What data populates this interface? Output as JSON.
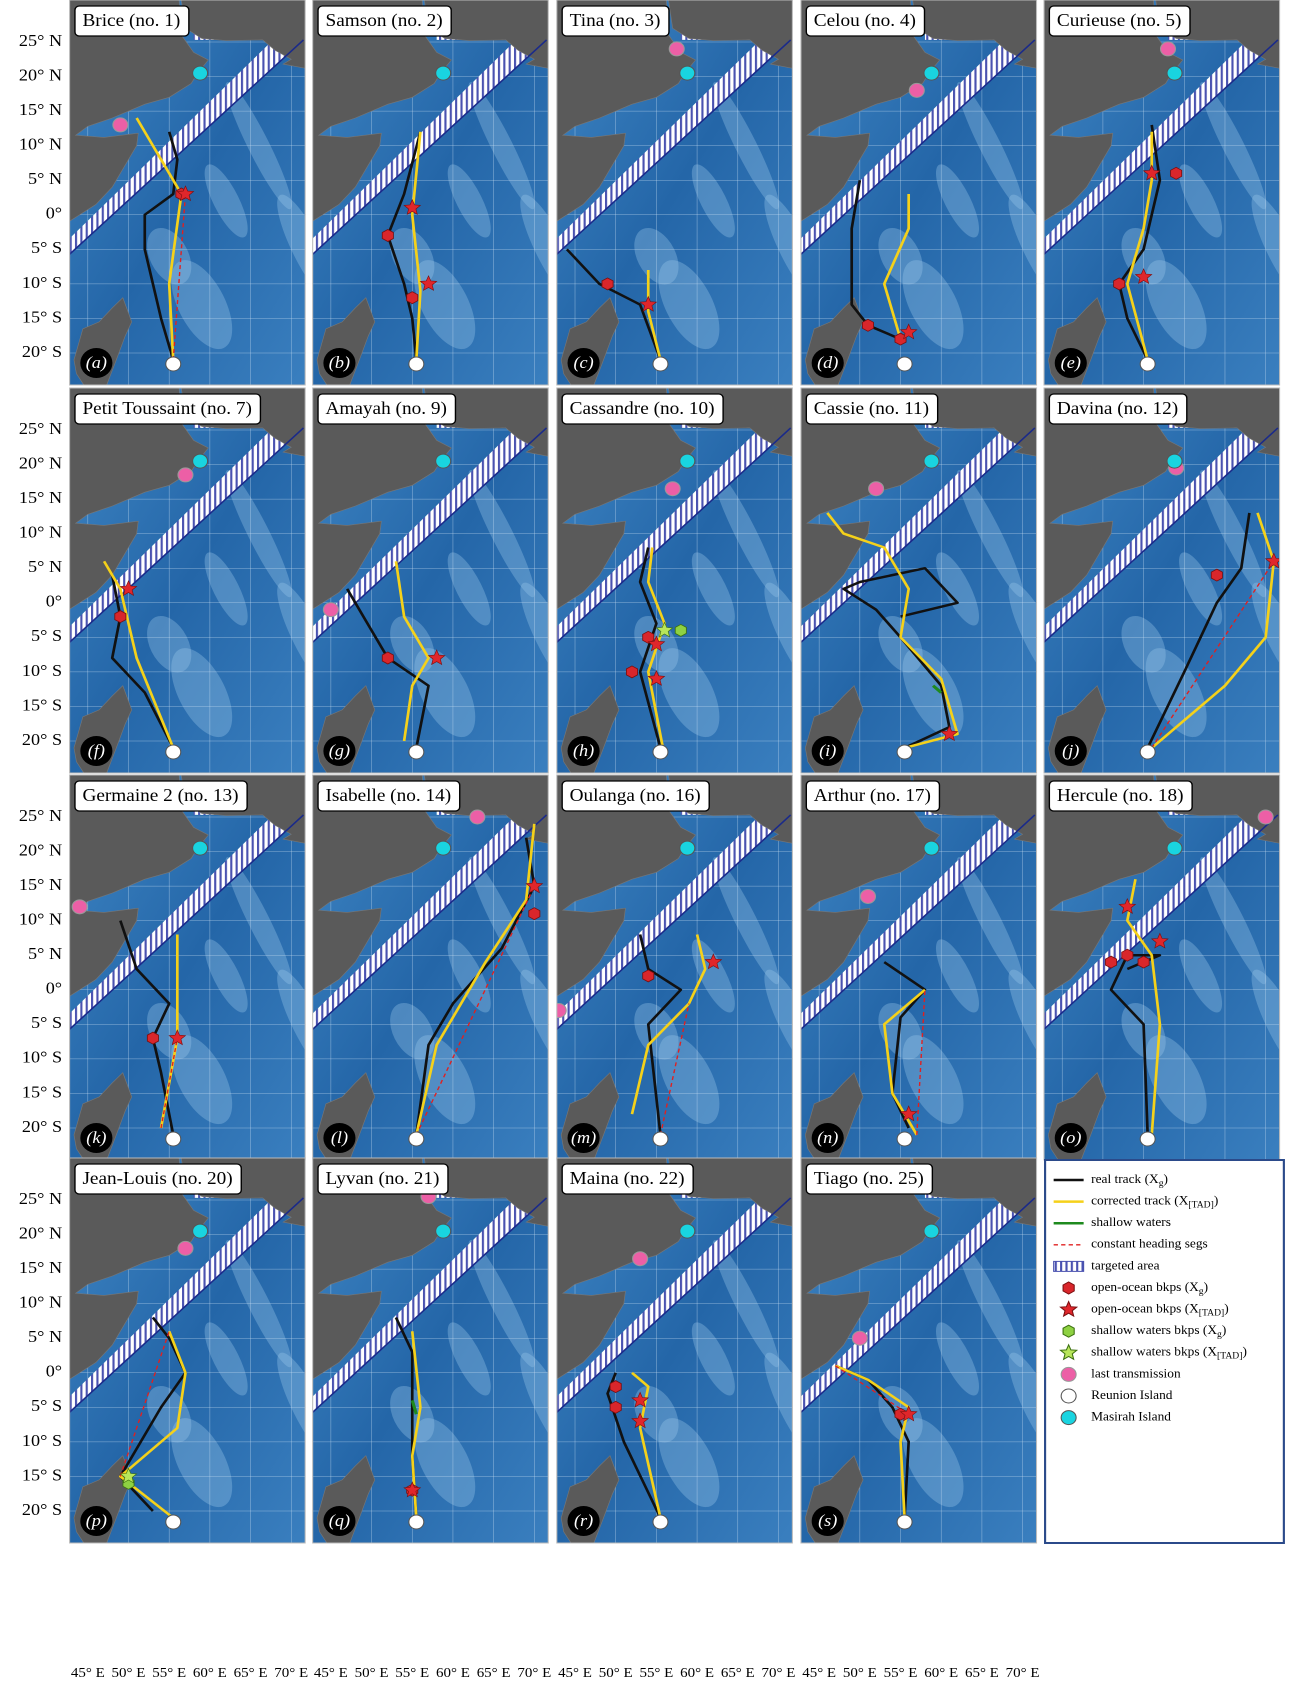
{
  "panels": [
    {
      "title": "Brice (no. 1)",
      "letter": "(a)"
    },
    {
      "title": "Samson (no. 2)",
      "letter": "(b)"
    },
    {
      "title": "Tina (no. 3)",
      "letter": "(c)"
    },
    {
      "title": "Celou (no. 4)",
      "letter": "(d)"
    },
    {
      "title": "Curieuse (no. 5)",
      "letter": "(e)"
    },
    {
      "title": "Petit Toussaint (no. 7)",
      "letter": "(f)"
    },
    {
      "title": "Amayah (no. 9)",
      "letter": "(g)"
    },
    {
      "title": "Cassandre (no. 10)",
      "letter": "(h)"
    },
    {
      "title": "Cassie (no. 11)",
      "letter": "(i)"
    },
    {
      "title": "Davina (no. 12)",
      "letter": "(j)"
    },
    {
      "title": "Germaine 2 (no. 13)",
      "letter": "(k)"
    },
    {
      "title": "Isabelle (no. 14)",
      "letter": "(l)"
    },
    {
      "title": "Oulanga (no. 16)",
      "letter": "(m)"
    },
    {
      "title": "Arthur (no. 17)",
      "letter": "(n)"
    },
    {
      "title": "Hercule (no. 18)",
      "letter": "(o)"
    },
    {
      "title": "Jean-Louis (no. 20)",
      "letter": "(p)"
    },
    {
      "title": "Lyvan (no.  21)",
      "letter": "(q)"
    },
    {
      "title": "Maina (no. 22)",
      "letter": "(r)"
    },
    {
      "title": "Tiago (no. 25)",
      "letter": "(s)"
    }
  ],
  "lat_labels": [
    "25° N",
    "20° N",
    "15° N",
    "10° N",
    "5° N",
    "0°",
    "5° S",
    "10° S",
    "15° S",
    "20° S"
  ],
  "lon_labels": [
    "45° E",
    "50° E",
    "55° E",
    "60° E",
    "65° E",
    "70° E"
  ],
  "legend": [
    {
      "label": "real track (X",
      "sub": "g",
      "end": ")"
    },
    {
      "label": "corrected track (X",
      "sub": "[TAD]",
      "end": ")"
    },
    {
      "label": "shallow waters"
    },
    {
      "label": "constant heading segs"
    },
    {
      "label": "targeted area"
    },
    {
      "label": "open-ocean bkps (X",
      "sub": "g",
      "end": ")"
    },
    {
      "label": "open-ocean bkps (X",
      "sub": "[TAD]",
      "end": ")"
    },
    {
      "label": "shallow waters bkps (X",
      "sub": "g",
      "end": ")"
    },
    {
      "label": "shallow waters bkps (X",
      "sub": "[TAD]",
      "end": ")"
    },
    {
      "label": "last transmission"
    },
    {
      "label": "Reunion Island"
    },
    {
      "label": "Masirah Island"
    }
  ]
}
